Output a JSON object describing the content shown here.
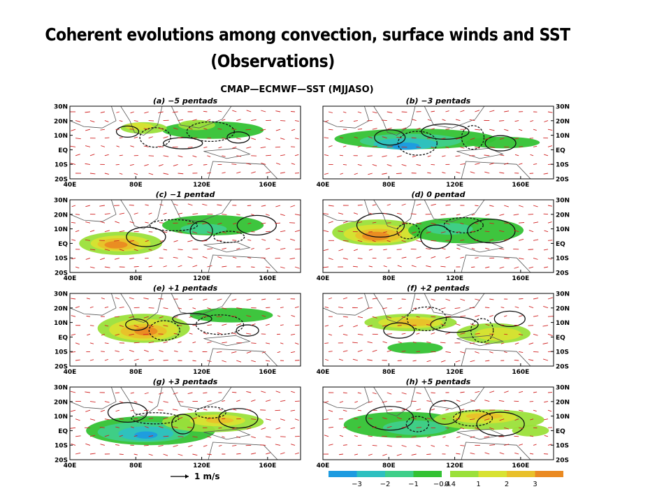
{
  "slide": {
    "title_line1": "Coherent evolutions among convection, surface winds and SST",
    "title_line2": "(Observations)"
  },
  "figure": {
    "title": "CMAP—ECMWF—SST (MJJASO)",
    "vector_scale_label": "1 m/s",
    "colors": {
      "neg3": "#1e9be0",
      "neg2": "#2ec0c0",
      "neg1": "#3fcf8a",
      "neg04": "#34c234",
      "pos04": "#9be03a",
      "pos1": "#d8e232",
      "pos2": "#e9c02a",
      "pos3": "#ea8a22",
      "vector": "#d02020",
      "contour": "#111111"
    }
  },
  "chart_data": {
    "type": "map-panels",
    "title": "CMAP—ECMWF—SST (MJJASO)",
    "x_ticks": [
      "40E",
      "80E",
      "120E",
      "160E"
    ],
    "y_ticks": [
      "30N",
      "20N",
      "10N",
      "EQ",
      "10S",
      "20S"
    ],
    "panels": [
      {
        "label": "(a) −5 pentads",
        "shade": [
          {
            "c": "neg04",
            "x": 62,
            "y": 33,
            "rx": 22,
            "ry": 12
          },
          {
            "c": "pos04",
            "x": 32,
            "y": 30,
            "rx": 10,
            "ry": 8
          },
          {
            "c": "pos1",
            "x": 30,
            "y": 28,
            "rx": 6,
            "ry": 5
          },
          {
            "c": "pos04",
            "x": 55,
            "y": 26,
            "rx": 8,
            "ry": 7
          }
        ]
      },
      {
        "label": "(b) −3 pentads",
        "shade": [
          {
            "c": "neg04",
            "x": 40,
            "y": 45,
            "rx": 35,
            "ry": 14
          },
          {
            "c": "neg1",
            "x": 38,
            "y": 48,
            "rx": 22,
            "ry": 10
          },
          {
            "c": "neg2",
            "x": 36,
            "y": 52,
            "rx": 14,
            "ry": 8
          },
          {
            "c": "neg3",
            "x": 36,
            "y": 55,
            "rx": 6,
            "ry": 5
          },
          {
            "c": "neg04",
            "x": 78,
            "y": 50,
            "rx": 16,
            "ry": 8
          }
        ]
      },
      {
        "label": "(c) −1 pentad",
        "shade": [
          {
            "c": "pos04",
            "x": 22,
            "y": 60,
            "rx": 18,
            "ry": 16
          },
          {
            "c": "pos1",
            "x": 22,
            "y": 60,
            "rx": 13,
            "ry": 11
          },
          {
            "c": "pos2",
            "x": 21,
            "y": 61,
            "rx": 9,
            "ry": 8
          },
          {
            "c": "pos3",
            "x": 20,
            "y": 62,
            "rx": 5,
            "ry": 5
          },
          {
            "c": "neg04",
            "x": 62,
            "y": 35,
            "rx": 22,
            "ry": 14
          },
          {
            "c": "neg1",
            "x": 58,
            "y": 40,
            "rx": 10,
            "ry": 7
          }
        ]
      },
      {
        "label": "(d) 0 pentad",
        "shade": [
          {
            "c": "pos04",
            "x": 24,
            "y": 45,
            "rx": 20,
            "ry": 18
          },
          {
            "c": "pos1",
            "x": 24,
            "y": 47,
            "rx": 15,
            "ry": 13
          },
          {
            "c": "pos2",
            "x": 24,
            "y": 49,
            "rx": 10,
            "ry": 9
          },
          {
            "c": "pos3",
            "x": 23,
            "y": 50,
            "rx": 6,
            "ry": 6
          },
          {
            "c": "neg04",
            "x": 62,
            "y": 42,
            "rx": 25,
            "ry": 18
          },
          {
            "c": "neg1",
            "x": 55,
            "y": 40,
            "rx": 10,
            "ry": 8
          }
        ]
      },
      {
        "label": "(e) +1 pentads",
        "shade": [
          {
            "c": "pos04",
            "x": 32,
            "y": 48,
            "rx": 20,
            "ry": 20
          },
          {
            "c": "pos1",
            "x": 32,
            "y": 50,
            "rx": 15,
            "ry": 15
          },
          {
            "c": "pos2",
            "x": 32,
            "y": 52,
            "rx": 10,
            "ry": 10
          },
          {
            "c": "pos3",
            "x": 33,
            "y": 52,
            "rx": 5,
            "ry": 6
          },
          {
            "c": "neg04",
            "x": 70,
            "y": 30,
            "rx": 18,
            "ry": 10
          }
        ]
      },
      {
        "label": "(f) +2 pentads",
        "shade": [
          {
            "c": "pos04",
            "x": 38,
            "y": 40,
            "rx": 20,
            "ry": 12
          },
          {
            "c": "pos1",
            "x": 38,
            "y": 40,
            "rx": 14,
            "ry": 8
          },
          {
            "c": "pos2",
            "x": 40,
            "y": 40,
            "rx": 8,
            "ry": 5
          },
          {
            "c": "pos04",
            "x": 74,
            "y": 55,
            "rx": 16,
            "ry": 14
          },
          {
            "c": "pos1",
            "x": 76,
            "y": 56,
            "rx": 10,
            "ry": 9
          },
          {
            "c": "neg04",
            "x": 40,
            "y": 75,
            "rx": 12,
            "ry": 8
          }
        ]
      },
      {
        "label": "(g) +3 pentads",
        "shade": [
          {
            "c": "neg04",
            "x": 35,
            "y": 60,
            "rx": 28,
            "ry": 20
          },
          {
            "c": "neg1",
            "x": 32,
            "y": 62,
            "rx": 20,
            "ry": 14
          },
          {
            "c": "neg2",
            "x": 33,
            "y": 64,
            "rx": 12,
            "ry": 10
          },
          {
            "c": "neg3",
            "x": 33,
            "y": 66,
            "rx": 5,
            "ry": 5
          },
          {
            "c": "pos04",
            "x": 62,
            "y": 48,
            "rx": 22,
            "ry": 14
          },
          {
            "c": "pos1",
            "x": 64,
            "y": 46,
            "rx": 12,
            "ry": 8
          },
          {
            "c": "pos2",
            "x": 65,
            "y": 46,
            "rx": 6,
            "ry": 4
          }
        ]
      },
      {
        "label": "(h) +5 pentads",
        "shade": [
          {
            "c": "neg04",
            "x": 35,
            "y": 52,
            "rx": 26,
            "ry": 18
          },
          {
            "c": "neg1",
            "x": 40,
            "y": 56,
            "rx": 14,
            "ry": 10
          },
          {
            "c": "pos04",
            "x": 72,
            "y": 45,
            "rx": 24,
            "ry": 14
          },
          {
            "c": "pos1",
            "x": 70,
            "y": 42,
            "rx": 14,
            "ry": 8
          },
          {
            "c": "pos2",
            "x": 70,
            "y": 40,
            "rx": 8,
            "ry": 4
          },
          {
            "c": "pos04",
            "x": 90,
            "y": 60,
            "rx": 8,
            "ry": 8
          }
        ]
      }
    ],
    "colorbar": {
      "levels": [
        "−3",
        "−2",
        "−1",
        "−0.4",
        "0.4",
        "1",
        "2",
        "3"
      ],
      "colors": [
        "neg3",
        "neg2",
        "neg1",
        "neg04",
        "pos04",
        "pos1",
        "pos2",
        "pos3"
      ]
    },
    "vector_scale": "1 m/s"
  }
}
